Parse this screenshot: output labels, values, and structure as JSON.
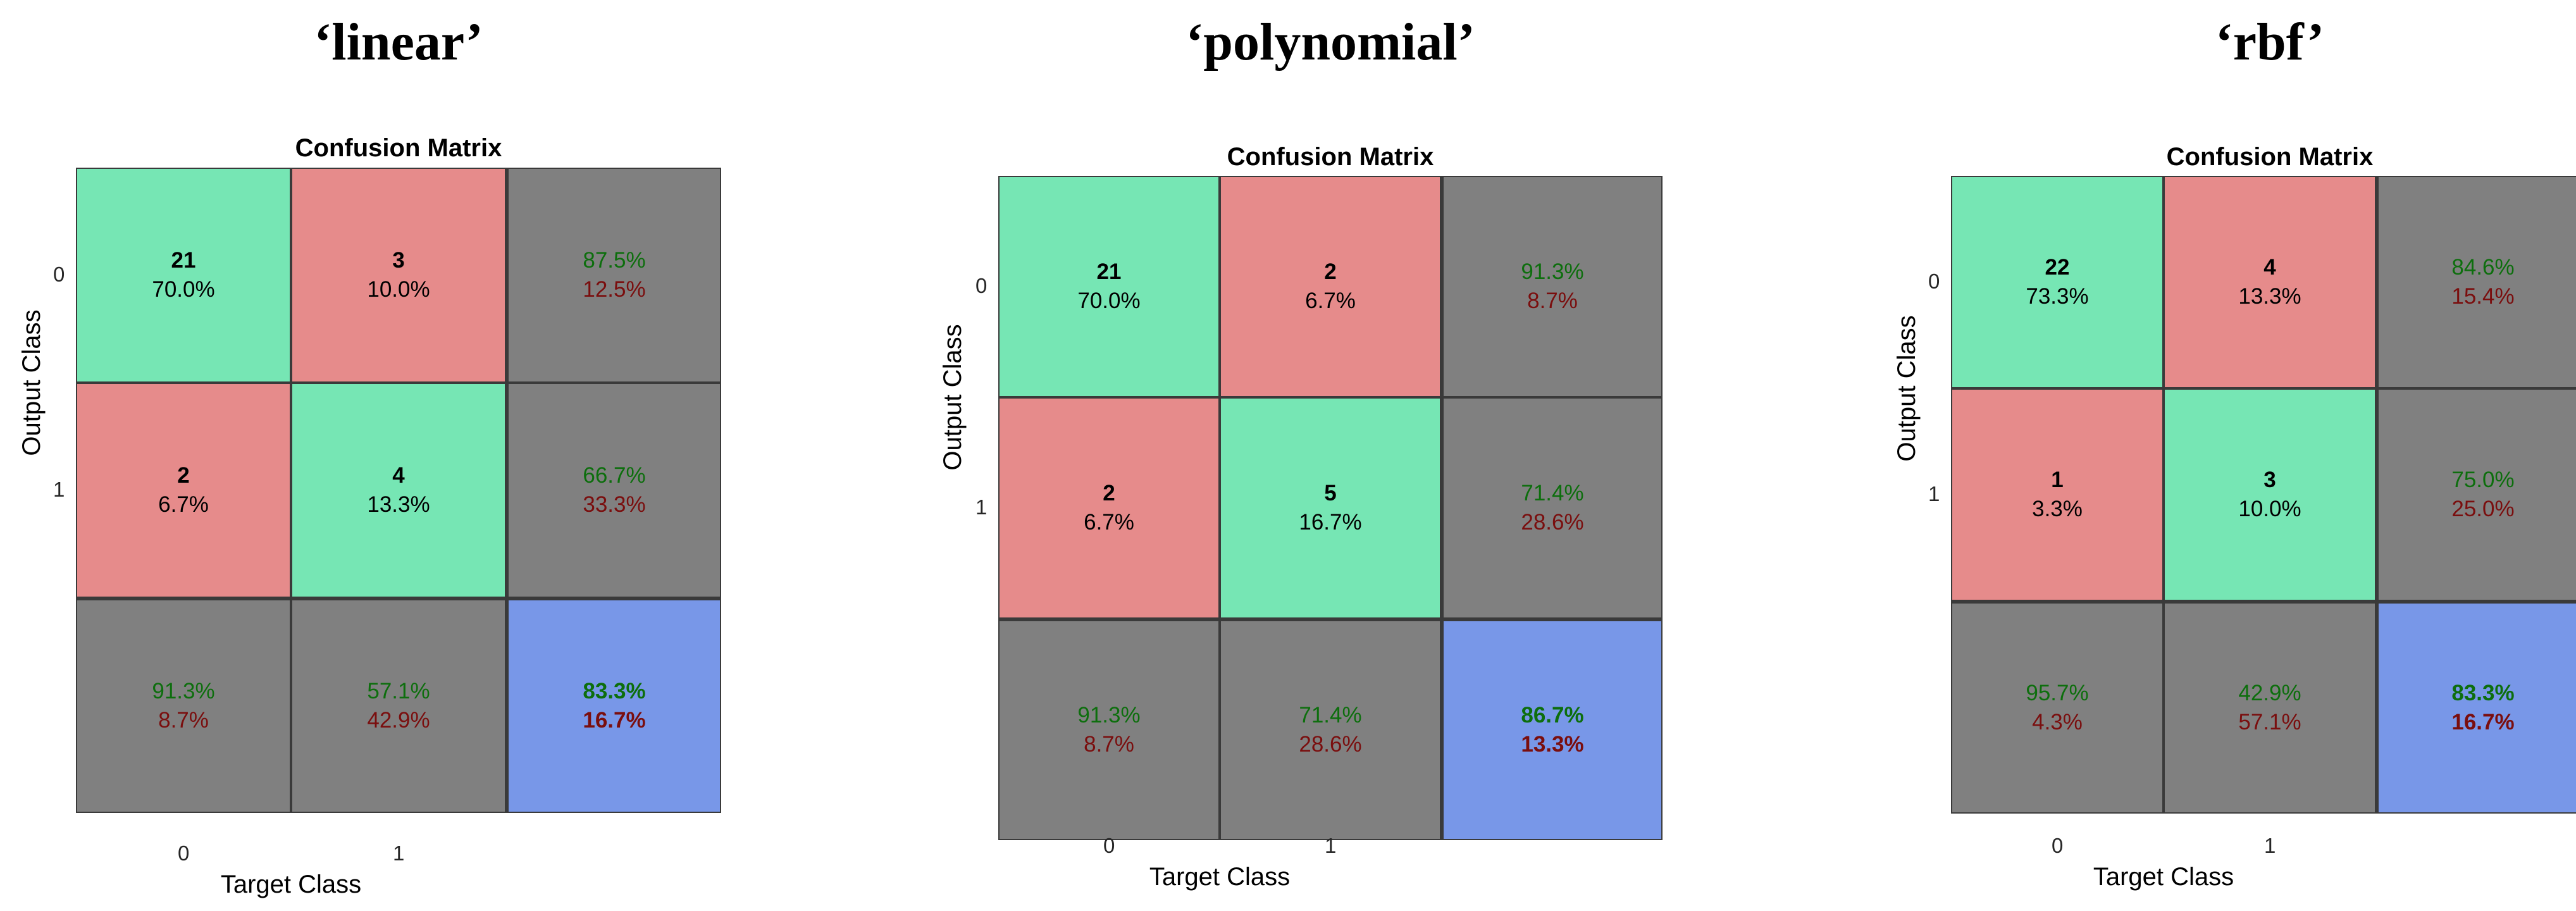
{
  "colors": {
    "correct": "#76e6b4",
    "incorrect": "#e68b8b",
    "summary": "#808080",
    "overall": "#7897e8",
    "grid_line": "#3a3a3a",
    "pct_good": "#0d6e0d",
    "pct_bad": "#7a0e0e"
  },
  "chart_data": [
    {
      "type": "heatmap",
      "panel_title": "‘linear’",
      "title": "Confusion Matrix",
      "xlabel": "Target Class",
      "ylabel": "Output Class",
      "x_ticks": [
        "0",
        "1"
      ],
      "y_ticks": [
        "0",
        "1"
      ],
      "cells": [
        [
          {
            "count": "21",
            "pct": "70.0%"
          },
          {
            "count": "3",
            "pct": "10.0%"
          },
          {
            "good": "87.5%",
            "bad": "12.5%"
          }
        ],
        [
          {
            "count": "2",
            "pct": "6.7%"
          },
          {
            "count": "4",
            "pct": "13.3%"
          },
          {
            "good": "66.7%",
            "bad": "33.3%"
          }
        ],
        [
          {
            "good": "91.3%",
            "bad": "8.7%"
          },
          {
            "good": "57.1%",
            "bad": "42.9%"
          },
          {
            "good": "83.3%",
            "bad": "16.7%"
          }
        ]
      ]
    },
    {
      "type": "heatmap",
      "panel_title": "‘polynomial’",
      "title": "Confusion Matrix",
      "xlabel": "Target Class",
      "ylabel": "Output Class",
      "x_ticks": [
        "0",
        "1"
      ],
      "y_ticks": [
        "0",
        "1"
      ],
      "cells": [
        [
          {
            "count": "21",
            "pct": "70.0%"
          },
          {
            "count": "2",
            "pct": "6.7%"
          },
          {
            "good": "91.3%",
            "bad": "8.7%"
          }
        ],
        [
          {
            "count": "2",
            "pct": "6.7%"
          },
          {
            "count": "5",
            "pct": "16.7%"
          },
          {
            "good": "71.4%",
            "bad": "28.6%"
          }
        ],
        [
          {
            "good": "91.3%",
            "bad": "8.7%"
          },
          {
            "good": "71.4%",
            "bad": "28.6%"
          },
          {
            "good": "86.7%",
            "bad": "13.3%"
          }
        ]
      ]
    },
    {
      "type": "heatmap",
      "panel_title": "‘rbf’",
      "title": "Confusion Matrix",
      "xlabel": "Target Class",
      "ylabel": "Output Class",
      "x_ticks": [
        "0",
        "1"
      ],
      "y_ticks": [
        "0",
        "1"
      ],
      "cells": [
        [
          {
            "count": "22",
            "pct": "73.3%"
          },
          {
            "count": "4",
            "pct": "13.3%"
          },
          {
            "good": "84.6%",
            "bad": "15.4%"
          }
        ],
        [
          {
            "count": "1",
            "pct": "3.3%"
          },
          {
            "count": "3",
            "pct": "10.0%"
          },
          {
            "good": "75.0%",
            "bad": "25.0%"
          }
        ],
        [
          {
            "good": "95.7%",
            "bad": "4.3%"
          },
          {
            "good": "42.9%",
            "bad": "57.1%"
          },
          {
            "good": "83.3%",
            "bad": "16.7%"
          }
        ]
      ]
    }
  ]
}
